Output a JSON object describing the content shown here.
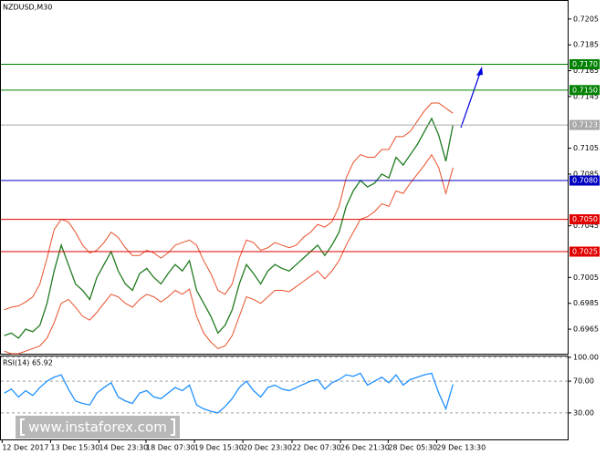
{
  "chart_data": [
    {
      "type": "line",
      "title": "NZDUSD,M30",
      "x": [
        0,
        1,
        2,
        3,
        4,
        5,
        6,
        7,
        8,
        9,
        10,
        11,
        12,
        13,
        14,
        15,
        16,
        17,
        18,
        19,
        20,
        21,
        22,
        23,
        24,
        25,
        26,
        27,
        28,
        29,
        30,
        31,
        32,
        33,
        34,
        35,
        36,
        37,
        38,
        39,
        40,
        41,
        42,
        43,
        44,
        45,
        46,
        47,
        48,
        49,
        50,
        51,
        52,
        53,
        54,
        55,
        56,
        57,
        58,
        59,
        60,
        61,
        62,
        63
      ],
      "series": [
        {
          "color": "#1f7a1f",
          "values": [
            0.696,
            0.6962,
            0.6958,
            0.6965,
            0.6963,
            0.6968,
            0.6985,
            0.701,
            0.703,
            0.7015,
            0.7,
            0.6995,
            0.6988,
            0.7005,
            0.7015,
            0.7025,
            0.701,
            0.7,
            0.6995,
            0.7008,
            0.7012,
            0.7005,
            0.7,
            0.7008,
            0.7015,
            0.701,
            0.7018,
            0.6995,
            0.6985,
            0.6975,
            0.6962,
            0.6968,
            0.698,
            0.7,
            0.7015,
            0.7008,
            0.7,
            0.701,
            0.7015,
            0.7012,
            0.701,
            0.7015,
            0.702,
            0.7025,
            0.703,
            0.7022,
            0.703,
            0.704,
            0.706,
            0.7072,
            0.708,
            0.7075,
            0.7078,
            0.7085,
            0.7082,
            0.7098,
            0.7092,
            0.71,
            0.7108,
            0.7118,
            0.7128,
            0.7115,
            0.7095,
            0.7123
          ]
        },
        {
          "color": "#e8502a",
          "values": [
            0.698,
            0.6982,
            0.6983,
            0.6986,
            0.699,
            0.7,
            0.702,
            0.7042,
            0.705,
            0.7048,
            0.704,
            0.703,
            0.7024,
            0.7026,
            0.7032,
            0.704,
            0.7036,
            0.7028,
            0.7022,
            0.7022,
            0.7026,
            0.7024,
            0.702,
            0.7024,
            0.703,
            0.7032,
            0.7034,
            0.703,
            0.7018,
            0.7008,
            0.6995,
            0.6992,
            0.7,
            0.702,
            0.7034,
            0.7032,
            0.7026,
            0.7028,
            0.7032,
            0.703,
            0.7028,
            0.703,
            0.7036,
            0.704,
            0.7046,
            0.7044,
            0.7048,
            0.706,
            0.7082,
            0.7094,
            0.71,
            0.7098,
            0.7098,
            0.7104,
            0.7104,
            0.7114,
            0.7114,
            0.7118,
            0.7126,
            0.7134,
            0.714,
            0.714,
            0.7136,
            0.7132
          ]
        },
        {
          "color": "#e8502a",
          "values": [
            0.6948,
            0.6946,
            0.6946,
            0.6948,
            0.695,
            0.6952,
            0.6958,
            0.697,
            0.6985,
            0.6988,
            0.6982,
            0.6975,
            0.6972,
            0.6978,
            0.6985,
            0.6992,
            0.699,
            0.6985,
            0.6982,
            0.6988,
            0.6992,
            0.699,
            0.6986,
            0.699,
            0.6995,
            0.6992,
            0.6996,
            0.6975,
            0.6962,
            0.6955,
            0.695,
            0.6952,
            0.696,
            0.6975,
            0.699,
            0.6988,
            0.6985,
            0.699,
            0.6995,
            0.6995,
            0.6994,
            0.6998,
            0.7002,
            0.7006,
            0.701,
            0.7004,
            0.701,
            0.7018,
            0.703,
            0.704,
            0.705,
            0.7052,
            0.7056,
            0.7062,
            0.706,
            0.7072,
            0.707,
            0.7078,
            0.7085,
            0.7092,
            0.71,
            0.709,
            0.707,
            0.709
          ]
        }
      ],
      "xlim": [
        -0.6,
        79.1
      ],
      "xticks": [
        {
          "value": -0.3,
          "label": "12 Dec 2017"
        },
        {
          "value": 6.5,
          "label": "13 Dec 15:30"
        },
        {
          "value": 13.3,
          "label": "14 Dec 23:30"
        },
        {
          "value": 19.9,
          "label": "18 Dec 07:30"
        },
        {
          "value": 26.7,
          "label": "19 Dec 15:30"
        },
        {
          "value": 33.5,
          "label": "20 Dec 23:30"
        },
        {
          "value": 40.4,
          "label": "22 Dec 07:30"
        },
        {
          "value": 47.2,
          "label": "26 Dec 21:30"
        },
        {
          "value": 53.9,
          "label": "28 Dec 05:30"
        },
        {
          "value": 60.7,
          "label": "29 Dec 13:30"
        }
      ],
      "ylim": [
        0.6946,
        0.7219
      ],
      "yticks": [
        0.6965,
        0.6985,
        0.7005,
        0.7045,
        0.7085,
        0.7105,
        0.7145,
        0.7165,
        0.7185,
        0.7205
      ],
      "levels": [
        {
          "value": 0.717,
          "label": "0.7170",
          "color": "#008000"
        },
        {
          "value": 0.715,
          "label": "0.7150",
          "color": "#008000"
        },
        {
          "value": 0.7123,
          "label": "0.7123",
          "color": "#a8a8a8"
        },
        {
          "value": 0.708,
          "label": "0.7080",
          "color": "#0000c0"
        },
        {
          "value": 0.705,
          "label": "0.7050",
          "color": "#e00000"
        },
        {
          "value": 0.7025,
          "label": "0.7025",
          "color": "#e00000"
        }
      ],
      "watermark": "www.instaforex.com"
    },
    {
      "type": "line",
      "title": "RSI(14) 65.92",
      "x": [
        0,
        1,
        2,
        3,
        4,
        5,
        6,
        7,
        8,
        9,
        10,
        11,
        12,
        13,
        14,
        15,
        16,
        17,
        18,
        19,
        20,
        21,
        22,
        23,
        24,
        25,
        26,
        27,
        28,
        29,
        30,
        31,
        32,
        33,
        34,
        35,
        36,
        37,
        38,
        39,
        40,
        41,
        42,
        43,
        44,
        45,
        46,
        47,
        48,
        49,
        50,
        51,
        52,
        53,
        54,
        55,
        56,
        57,
        58,
        59,
        60,
        61,
        62,
        63
      ],
      "series": [
        {
          "color": "#1e90ff",
          "values": [
            55,
            60,
            50,
            58,
            52,
            62,
            70,
            75,
            78,
            60,
            45,
            42,
            40,
            55,
            62,
            68,
            50,
            45,
            42,
            55,
            58,
            50,
            48,
            55,
            62,
            58,
            65,
            40,
            35,
            32,
            30,
            38,
            48,
            62,
            70,
            58,
            50,
            62,
            65,
            60,
            58,
            62,
            66,
            70,
            72,
            60,
            68,
            72,
            78,
            76,
            80,
            65,
            70,
            75,
            68,
            78,
            65,
            72,
            75,
            78,
            80,
            55,
            35,
            65.92
          ]
        }
      ],
      "xlim": [
        -0.6,
        79.1
      ],
      "ylim": [
        0,
        100
      ],
      "yticks": [
        {
          "value": 100,
          "label": "100.00"
        },
        {
          "value": 70,
          "label": "70.00"
        },
        {
          "value": 30,
          "label": "30.00"
        }
      ],
      "grid": true
    }
  ]
}
